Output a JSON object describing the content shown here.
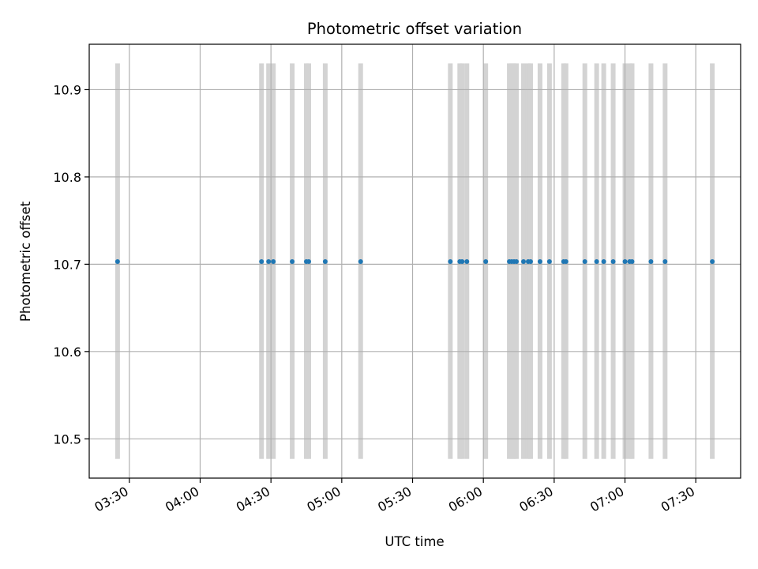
{
  "chart_data": {
    "type": "scatter",
    "title": "Photometric offset variation",
    "xlabel": "UTC time",
    "ylabel": "Photometric offset",
    "x_axis": "time",
    "x_ticks": [
      "03:30",
      "04:00",
      "04:30",
      "05:00",
      "05:30",
      "06:00",
      "06:30",
      "07:00",
      "07:30"
    ],
    "x_range": [
      "03:13",
      "07:49"
    ],
    "y_ticks": [
      "10.5",
      "10.6",
      "10.7",
      "10.8",
      "10.9"
    ],
    "ylim": [
      10.455,
      10.952
    ],
    "grid": true,
    "legend": "none",
    "colors": {
      "points": "#1f77b4",
      "bands": "#d3d3d3",
      "grid": "#b0b0b0"
    },
    "bands": {
      "y_range": [
        10.477,
        10.93
      ],
      "times": [
        "03:25",
        "04:26",
        "04:29",
        "04:31",
        "04:39",
        "04:45",
        "04:46",
        "04:53",
        "05:08",
        "05:46",
        "05:50",
        "05:51",
        "05:53",
        "06:01",
        "06:11",
        "06:12",
        "06:13",
        "06:14",
        "06:17",
        "06:19",
        "06:20",
        "06:24",
        "06:28",
        "06:34",
        "06:35",
        "06:43",
        "06:48",
        "06:51",
        "06:55",
        "07:00",
        "07:02",
        "07:03",
        "07:11",
        "07:17",
        "07:37"
      ]
    },
    "series": [
      {
        "x": [
          "03:25",
          "04:26",
          "04:29",
          "04:31",
          "04:39",
          "04:45",
          "04:46",
          "04:53",
          "05:08",
          "05:46",
          "05:50",
          "05:51",
          "05:53",
          "06:01",
          "06:11",
          "06:12",
          "06:13",
          "06:14",
          "06:17",
          "06:19",
          "06:20",
          "06:24",
          "06:28",
          "06:34",
          "06:35",
          "06:43",
          "06:48",
          "06:51",
          "06:55",
          "07:00",
          "07:02",
          "07:03",
          "07:11",
          "07:17",
          "07:37"
        ],
        "y": [
          10.703,
          10.703,
          10.703,
          10.703,
          10.703,
          10.703,
          10.703,
          10.703,
          10.703,
          10.703,
          10.703,
          10.703,
          10.703,
          10.703,
          10.703,
          10.703,
          10.703,
          10.703,
          10.703,
          10.703,
          10.703,
          10.703,
          10.703,
          10.703,
          10.703,
          10.703,
          10.703,
          10.703,
          10.703,
          10.703,
          10.703,
          10.703,
          10.703,
          10.703,
          10.703
        ]
      }
    ]
  }
}
